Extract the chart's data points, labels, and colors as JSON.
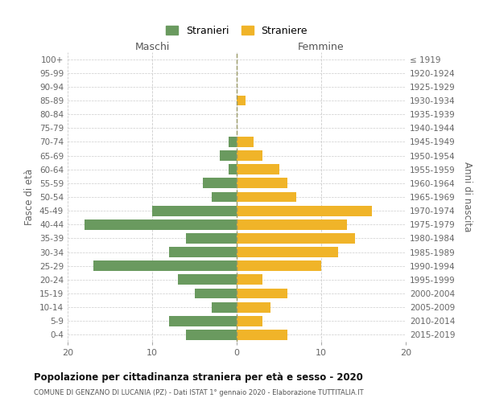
{
  "age_groups": [
    "100+",
    "95-99",
    "90-94",
    "85-89",
    "80-84",
    "75-79",
    "70-74",
    "65-69",
    "60-64",
    "55-59",
    "50-54",
    "45-49",
    "40-44",
    "35-39",
    "30-34",
    "25-29",
    "20-24",
    "15-19",
    "10-14",
    "5-9",
    "0-4"
  ],
  "birth_years": [
    "≤ 1919",
    "1920-1924",
    "1925-1929",
    "1930-1934",
    "1935-1939",
    "1940-1944",
    "1945-1949",
    "1950-1954",
    "1955-1959",
    "1960-1964",
    "1965-1969",
    "1970-1974",
    "1975-1979",
    "1980-1984",
    "1985-1989",
    "1990-1994",
    "1995-1999",
    "2000-2004",
    "2005-2009",
    "2010-2014",
    "2015-2019"
  ],
  "maschi": [
    0,
    0,
    0,
    0,
    0,
    0,
    1,
    2,
    1,
    4,
    3,
    10,
    18,
    6,
    8,
    17,
    7,
    5,
    3,
    8,
    6
  ],
  "femmine": [
    0,
    0,
    0,
    1,
    0,
    0,
    2,
    3,
    5,
    6,
    7,
    16,
    13,
    14,
    12,
    10,
    3,
    6,
    4,
    3,
    6
  ],
  "maschi_color": "#6a9a5f",
  "femmine_color": "#f0b429",
  "bar_height": 0.75,
  "xlim": 20,
  "title": "Popolazione per cittadinanza straniera per età e sesso - 2020",
  "subtitle": "COMUNE DI GENZANO DI LUCANIA (PZ) - Dati ISTAT 1° gennaio 2020 - Elaborazione TUTTITALIA.IT",
  "ylabel_left": "Fasce di età",
  "ylabel_right": "Anni di nascita",
  "legend_maschi": "Stranieri",
  "legend_femmine": "Straniere",
  "maschi_label": "Maschi",
  "femmine_label": "Femmine",
  "background_color": "#ffffff",
  "grid_color": "#cccccc"
}
